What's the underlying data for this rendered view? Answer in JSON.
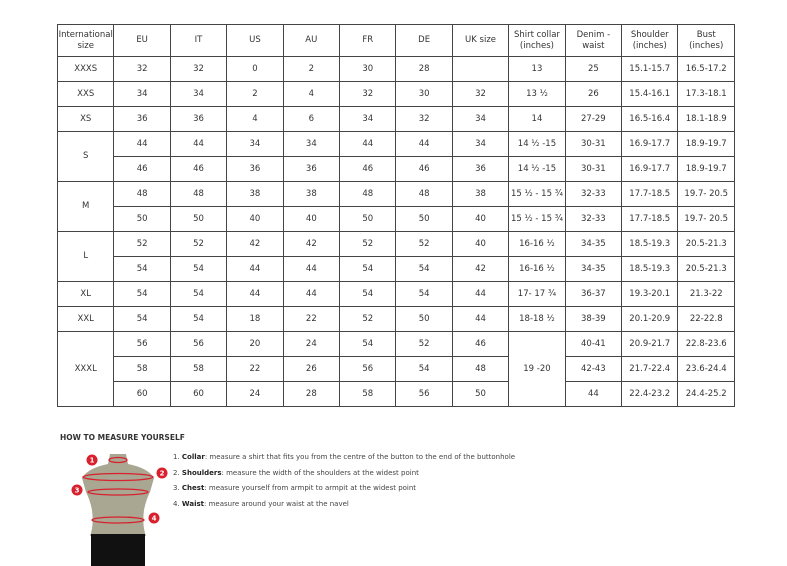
{
  "table": {
    "headers": [
      "International size",
      "EU",
      "IT",
      "US",
      "AU",
      "FR",
      "DE",
      "UK size",
      "Shirt collar (inches)",
      "Denim - waist",
      "Shoulder (inches)",
      "Bust (inches)"
    ],
    "groups": [
      {
        "size": "XXXS",
        "rows": [
          [
            "32",
            "32",
            "0",
            "2",
            "30",
            "28",
            "",
            "13",
            "25",
            "15.1-15.7",
            "16.5-17.2"
          ]
        ]
      },
      {
        "size": "XXS",
        "rows": [
          [
            "34",
            "34",
            "2",
            "4",
            "32",
            "30",
            "32",
            "13 ½",
            "26",
            "15.4-16.1",
            "17.3-18.1"
          ]
        ]
      },
      {
        "size": "XS",
        "rows": [
          [
            "36",
            "36",
            "4",
            "6",
            "34",
            "32",
            "34",
            "14",
            "27-29",
            "16.5-16.4",
            "18.1-18.9"
          ]
        ]
      },
      {
        "size": "S",
        "rows": [
          [
            "44",
            "44",
            "34",
            "34",
            "44",
            "44",
            "34",
            "14 ½ -15",
            "30-31",
            "16.9-17.7",
            "18.9-19.7"
          ],
          [
            "46",
            "46",
            "36",
            "36",
            "46",
            "46",
            "36",
            "14 ½ -15",
            "30-31",
            "16.9-17.7",
            "18.9-19.7"
          ]
        ]
      },
      {
        "size": "M",
        "rows": [
          [
            "48",
            "48",
            "38",
            "38",
            "48",
            "48",
            "38",
            "15 ½ - 15 ¾",
            "32-33",
            "17.7-18.5",
            "19.7- 20.5"
          ],
          [
            "50",
            "50",
            "40",
            "40",
            "50",
            "50",
            "40",
            "15 ½ - 15 ¾",
            "32-33",
            "17.7-18.5",
            "19.7- 20.5"
          ]
        ]
      },
      {
        "size": "L",
        "rows": [
          [
            "52",
            "52",
            "42",
            "42",
            "52",
            "52",
            "40",
            "16-16 ½",
            "34-35",
            "18.5-19.3",
            "20.5-21.3"
          ],
          [
            "54",
            "54",
            "44",
            "44",
            "54",
            "54",
            "42",
            "16-16 ½",
            "34-35",
            "18.5-19.3",
            "20.5-21.3"
          ]
        ]
      },
      {
        "size": "XL",
        "rows": [
          [
            "54",
            "54",
            "44",
            "44",
            "54",
            "54",
            "44",
            "17- 17 ¾",
            "36-37",
            "19.3-20.1",
            "21.3-22"
          ]
        ]
      },
      {
        "size": "XXL",
        "rows": [
          [
            "54",
            "54",
            "18",
            "22",
            "52",
            "50",
            "44",
            "18-18 ½",
            "38-39",
            "20.1-20.9",
            "22-22.8"
          ]
        ]
      },
      {
        "size": "XXXL",
        "collar_merged": "19 -20",
        "rows": [
          [
            "56",
            "56",
            "20",
            "24",
            "54",
            "52",
            "46",
            null,
            "40-41",
            "20.9-21.7",
            "22.8-23.6"
          ],
          [
            "58",
            "58",
            "22",
            "26",
            "56",
            "54",
            "48",
            null,
            "42-43",
            "21.7-22.4",
            "23.6-24.4"
          ],
          [
            "60",
            "60",
            "24",
            "28",
            "58",
            "56",
            "50",
            null,
            "44",
            "22.4-23.2",
            "24.4-25.2"
          ]
        ]
      }
    ]
  },
  "howto": {
    "title": "HOW TO MEASURE YOURSELF",
    "steps": [
      {
        "num": "1.",
        "term": "Collar",
        "text": ": measure a shirt that fits you from the centre of the button to the end of the buttonhole"
      },
      {
        "num": "2.",
        "term": "Shoulders",
        "text": ": measure the width of the shoulders at the widest point"
      },
      {
        "num": "3.",
        "term": "Chest",
        "text": ": measure yourself from armpit to armpit at the widest point"
      },
      {
        "num": "4.",
        "term": "Waist",
        "text": ": measure around your waist at the navel"
      }
    ],
    "markers": [
      "1",
      "2",
      "3",
      "4"
    ],
    "colors": {
      "torso": "#a9a692",
      "measure": "#d9202e",
      "shorts": "#111111"
    }
  }
}
